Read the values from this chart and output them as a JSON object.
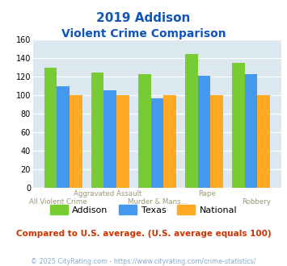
{
  "title_line1": "2019 Addison",
  "title_line2": "Violent Crime Comparison",
  "addison": [
    130,
    125,
    123,
    145,
    135
  ],
  "texas": [
    110,
    105,
    97,
    121,
    123
  ],
  "national": [
    100,
    100,
    100,
    100,
    100
  ],
  "top_labels": [
    "",
    "Aggravated Assault",
    "",
    "Rape",
    ""
  ],
  "bottom_labels": [
    "All Violent Crime",
    "",
    "Murder & Mans...",
    "",
    "Robbery"
  ],
  "color_addison": "#77cc33",
  "color_texas": "#4499ee",
  "color_national": "#ffaa22",
  "ylim": [
    0,
    160
  ],
  "yticks": [
    0,
    20,
    40,
    60,
    80,
    100,
    120,
    140,
    160
  ],
  "title_color": "#1155bb",
  "bg_color": "#dce8f0",
  "xlabel_color": "#999977",
  "note_text": "Compared to U.S. average. (U.S. average equals 100)",
  "note_color": "#cc3300",
  "footer_text": "© 2025 CityRating.com - https://www.cityrating.com/crime-statistics/",
  "footer_color": "#88aacc",
  "legend_labels": [
    "Addison",
    "Texas",
    "National"
  ]
}
